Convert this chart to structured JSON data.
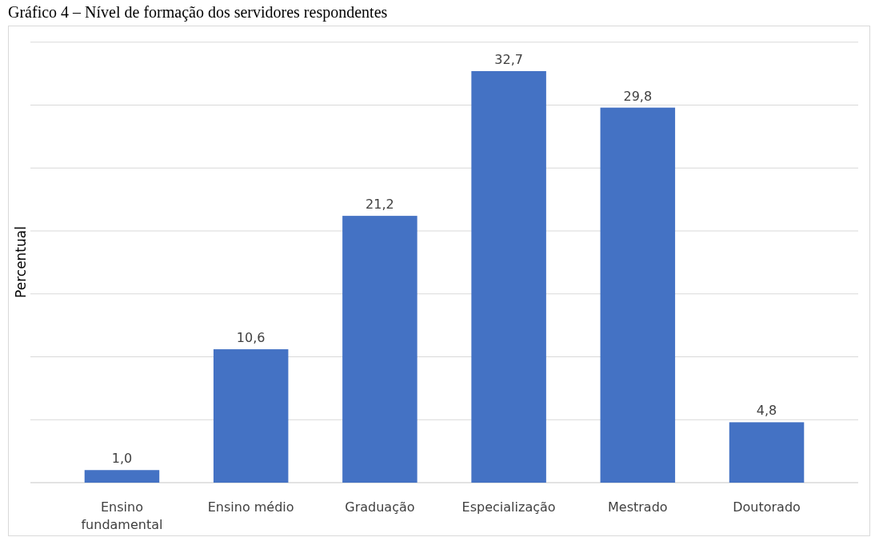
{
  "chart_data": {
    "type": "bar",
    "title": "Gráfico 4 – Nível de formação dos servidores respondentes",
    "ylabel": "Percentual",
    "categories": [
      "Ensino fundamental",
      "Ensino médio",
      "Graduação",
      "Especialização",
      "Mestrado",
      "Doutorado"
    ],
    "values": [
      1.0,
      10.6,
      21.2,
      32.7,
      29.8,
      4.8
    ],
    "color": "#4472c4",
    "value_labels": [
      "1,0",
      "10,6",
      "21,2",
      "32,7",
      "29,8",
      "4,8"
    ],
    "grid": "y",
    "tick_labels": "x"
  }
}
